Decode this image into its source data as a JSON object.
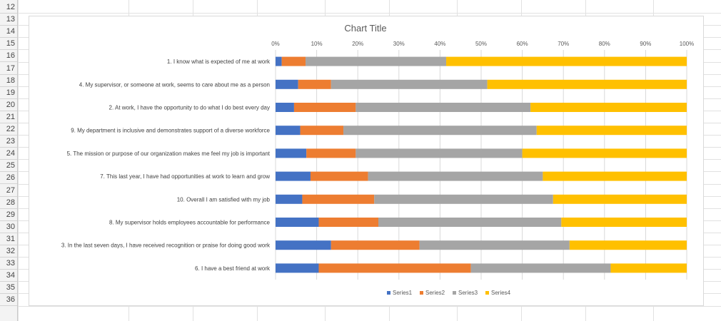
{
  "sheet": {
    "row_numbers": [
      "12",
      "13",
      "14",
      "15",
      "16",
      "17",
      "18",
      "19",
      "20",
      "21",
      "22",
      "23",
      "24",
      "25",
      "26",
      "27",
      "28",
      "29",
      "30",
      "31",
      "32",
      "33",
      "34",
      "35",
      "36"
    ]
  },
  "chart_data": {
    "type": "bar",
    "orientation": "horizontal",
    "stacked": "percent",
    "title": "Chart Title",
    "xlim": [
      0,
      1
    ],
    "x_ticks": [
      "0%",
      "10%",
      "20%",
      "30%",
      "40%",
      "50%",
      "60%",
      "70%",
      "80%",
      "90%",
      "100%"
    ],
    "legend_position": "bottom",
    "categories": [
      "1. I know what is expected of me at work",
      "4. My supervisor, or someone at work, seems to care about me as a person",
      "2. At work, I have the opportunity to do what I do best every day",
      "9. My department is inclusive and demonstrates support of a diverse workforce",
      "5. The mission or purpose of our organization makes me feel my job is important",
      "7. This last year, I have had opportunities at work to learn and grow",
      "10. Overall I am satisfied with my job",
      "8. My supervisor holds employees accountable for performance",
      "3. In the last seven days, I have received recognition or praise for doing good work",
      "6. I have a best friend at work"
    ],
    "series": [
      {
        "name": "Series1",
        "color": "#4472C4",
        "values": [
          0.015,
          0.055,
          0.045,
          0.06,
          0.075,
          0.085,
          0.065,
          0.105,
          0.135,
          0.105
        ]
      },
      {
        "name": "Series2",
        "color": "#ED7D31",
        "values": [
          0.058,
          0.08,
          0.15,
          0.105,
          0.12,
          0.14,
          0.175,
          0.145,
          0.215,
          0.37
        ]
      },
      {
        "name": "Series3",
        "color": "#A5A5A5",
        "values": [
          0.342,
          0.38,
          0.425,
          0.47,
          0.405,
          0.425,
          0.435,
          0.445,
          0.365,
          0.34
        ]
      },
      {
        "name": "Series4",
        "color": "#FFC000",
        "values": [
          0.585,
          0.485,
          0.38,
          0.365,
          0.4,
          0.35,
          0.325,
          0.305,
          0.285,
          0.185
        ]
      }
    ]
  }
}
